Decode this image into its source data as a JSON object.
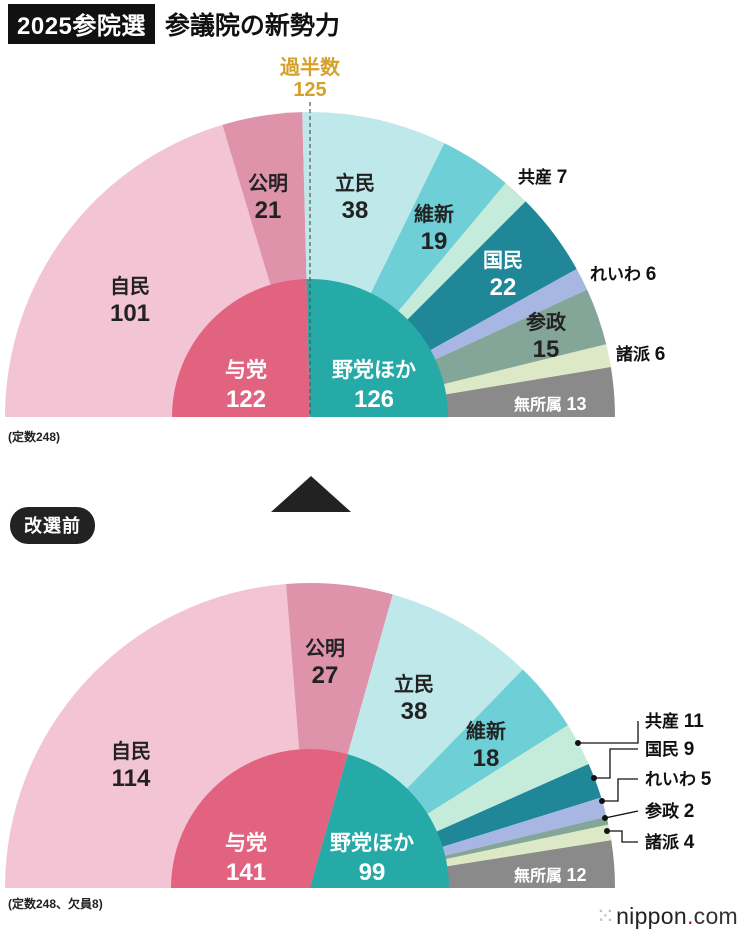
{
  "header": {
    "tag": "2025参院選",
    "title": "参議院の新勢力"
  },
  "majority": {
    "label": "過半数",
    "value": 125
  },
  "sections": {
    "after": {
      "note": "(定数248)"
    },
    "before": {
      "badge": "改選前",
      "note": "(定数248、欠員8)"
    }
  },
  "watermark": {
    "dots": "⁙",
    "name": "nippon",
    "dot": ".",
    "tld": "com"
  },
  "colors": {
    "ldp": "#f3c4d4",
    "komeito": "#df93ab",
    "cdp": "#bfe8ea",
    "ishin": "#6fcfd6",
    "jcp": "#c5ebdb",
    "dpfp": "#1f8797",
    "reiwa": "#a8b6e4",
    "sanseito": "#83a698",
    "minor": "#dde8c6",
    "independent": "#8a8a8a",
    "ruling": "#e2637f",
    "opposition": "#26aaa8"
  },
  "chart_data": [
    {
      "type": "pie",
      "subtype": "semicircle-parliament",
      "total": 248,
      "outer_ring": [
        {
          "name": "自民",
          "value": 101,
          "color_key": "ldp",
          "label_color": "#222222"
        },
        {
          "name": "公明",
          "value": 21,
          "color_key": "komeito",
          "label_color": "#222222"
        },
        {
          "name": "立民",
          "value": 38,
          "color_key": "cdp",
          "label_color": "#222222"
        },
        {
          "name": "維新",
          "value": 19,
          "color_key": "ishin",
          "label_color": "#222222"
        },
        {
          "name": "共産",
          "value": 7,
          "color_key": "jcp",
          "label_color": "#222222"
        },
        {
          "name": "国民",
          "value": 22,
          "color_key": "dpfp",
          "label_color": "#ffffff"
        },
        {
          "name": "れいわ",
          "value": 6,
          "color_key": "reiwa",
          "label_color": "#222222"
        },
        {
          "name": "参政",
          "value": 15,
          "color_key": "sanseito",
          "label_color": "#222222"
        },
        {
          "name": "諸派",
          "value": 6,
          "color_key": "minor",
          "label_color": "#222222"
        },
        {
          "name": "無所属",
          "value": 13,
          "color_key": "independent",
          "label_color": "#ffffff"
        }
      ],
      "inner_ring": [
        {
          "name": "与党",
          "value": 122,
          "color_key": "ruling"
        },
        {
          "name": "野党ほか",
          "value": 126,
          "color_key": "opposition"
        }
      ]
    },
    {
      "type": "pie",
      "subtype": "semicircle-parliament",
      "total": 240,
      "outer_ring": [
        {
          "name": "自民",
          "value": 114,
          "color_key": "ldp",
          "label_color": "#222222"
        },
        {
          "name": "公明",
          "value": 27,
          "color_key": "komeito",
          "label_color": "#222222"
        },
        {
          "name": "立民",
          "value": 38,
          "color_key": "cdp",
          "label_color": "#222222"
        },
        {
          "name": "維新",
          "value": 18,
          "color_key": "ishin",
          "label_color": "#222222"
        },
        {
          "name": "共産",
          "value": 11,
          "color_key": "jcp",
          "label_color": "#222222"
        },
        {
          "name": "国民",
          "value": 9,
          "color_key": "dpfp",
          "label_color": "#222222"
        },
        {
          "name": "れいわ",
          "value": 5,
          "color_key": "reiwa",
          "label_color": "#222222"
        },
        {
          "name": "参政",
          "value": 2,
          "color_key": "sanseito",
          "label_color": "#222222"
        },
        {
          "name": "諸派",
          "value": 4,
          "color_key": "minor",
          "label_color": "#222222"
        },
        {
          "name": "無所属",
          "value": 12,
          "color_key": "independent",
          "label_color": "#ffffff"
        }
      ],
      "inner_ring": [
        {
          "name": "与党",
          "value": 141,
          "color_key": "ruling"
        },
        {
          "name": "野党ほか",
          "value": 99,
          "color_key": "opposition"
        }
      ]
    }
  ]
}
